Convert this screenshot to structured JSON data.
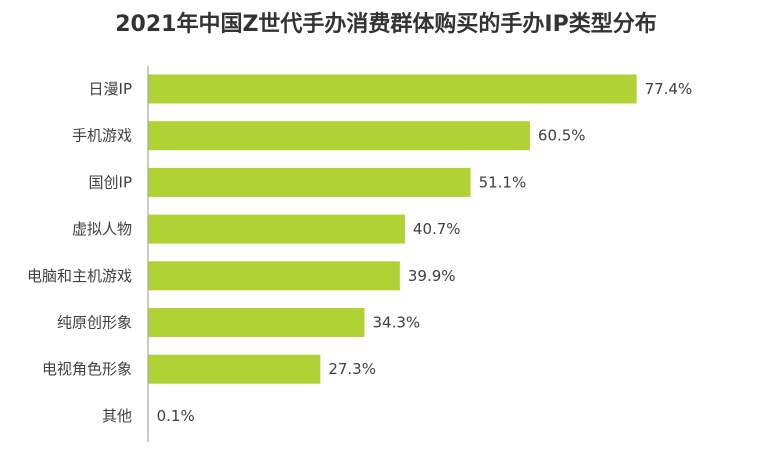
{
  "chart_data": {
    "type": "bar",
    "orientation": "horizontal",
    "title": "2021年中国Z世代手办消费群体购买的手办IP类型分布",
    "categories": [
      "日漫IP",
      "手机游戏",
      "国创IP",
      "虚拟人物",
      "电脑和主机游戏",
      "纯原创形象",
      "电视角色形象",
      "其他"
    ],
    "values": [
      77.4,
      60.5,
      51.1,
      40.7,
      39.9,
      34.3,
      27.3,
      0.1
    ],
    "value_labels": [
      "77.4%",
      "60.5%",
      "51.1%",
      "40.7%",
      "39.9%",
      "34.3%",
      "27.3%",
      "0.1%"
    ],
    "unit": "%",
    "xlim": [
      0,
      80
    ],
    "bar_color": "#b0d234",
    "axis_color": "#a6a6a6",
    "grid": false,
    "legend": "none"
  }
}
